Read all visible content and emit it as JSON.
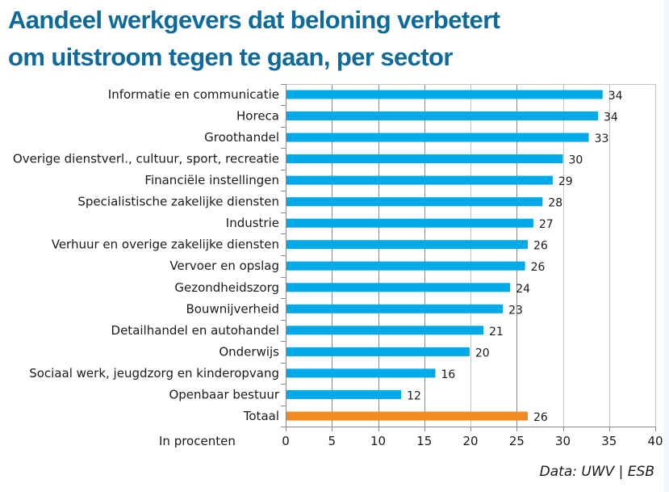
{
  "title_line1": "Aandeel werkgevers dat beloning verbetert",
  "title_line2": "om uitstroom tegen te gaan, per sector",
  "source": "Data: UWV | ESB",
  "colors": {
    "bar": "#00a9e8",
    "highlight": "#f18a21",
    "title": "#0e6a9b",
    "grid": "#a8a8a8"
  },
  "chart_data": {
    "type": "bar",
    "orientation": "horizontal",
    "title": "Aandeel werkgevers dat beloning verbetert om uitstroom tegen te gaan, per sector",
    "xlabel": "In procenten",
    "ylabel": "",
    "xlim": [
      0,
      40
    ],
    "xticks": [
      0,
      5,
      10,
      15,
      20,
      25,
      30,
      35,
      40
    ],
    "grid": true,
    "categories": [
      "Informatie en communicatie",
      "Horeca",
      "Groothandel",
      "Overige dienstverl., cultuur, sport, recreatie",
      "Financiële instellingen",
      "Specialistische zakelijke diensten",
      "Industrie",
      "Verhuur en overige zakelijke diensten",
      "Vervoer en opslag",
      "Gezondheidszorg",
      "Bouwnijverheid",
      "Detailhandel en autohandel",
      "Onderwijs",
      "Sociaal werk, jeugdzorg en kinderopvang",
      "Openbaar bestuur",
      "Totaal"
    ],
    "values": [
      34.3,
      33.8,
      32.8,
      30.0,
      28.9,
      27.8,
      26.8,
      26.2,
      25.9,
      24.3,
      23.5,
      21.4,
      19.9,
      16.2,
      12.5,
      26.2
    ],
    "labels": [
      "34",
      "34",
      "33",
      "30",
      "29",
      "28",
      "27",
      "26",
      "26",
      "24",
      "23",
      "21",
      "20",
      "16",
      "12",
      "26"
    ],
    "highlight": [
      "Totaal"
    ],
    "source": "Data: UWV | ESB"
  }
}
